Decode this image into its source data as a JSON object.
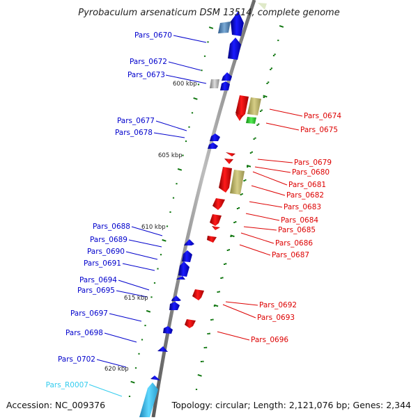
{
  "title": "Pyrobaculum arsenaticum DSM 13514, complete genome",
  "footer": {
    "accession": "Accession: NC_009376",
    "topology": "Topology: circular; Length: 2,121,076 bp; Genes: 2,344"
  },
  "colors": {
    "forward": "#0000cc",
    "reverse": "#dd0000",
    "rna": "#33bbdd",
    "tick": "#117711",
    "backbone": "#888888"
  },
  "scale_labels": [
    "600 kbp",
    "605 kbp",
    "610 kbp",
    "615 kbp",
    "620 kbp"
  ],
  "genes_left": [
    {
      "name": "Pars_0670",
      "color": "#0000cc"
    },
    {
      "name": "Pars_0672",
      "color": "#0000cc"
    },
    {
      "name": "Pars_0673",
      "color": "#0000cc"
    },
    {
      "name": "Pars_0677",
      "color": "#0000cc"
    },
    {
      "name": "Pars_0678",
      "color": "#0000cc"
    },
    {
      "name": "Pars_0688",
      "color": "#0000cc"
    },
    {
      "name": "Pars_0689",
      "color": "#0000cc"
    },
    {
      "name": "Pars_0690",
      "color": "#0000cc"
    },
    {
      "name": "Pars_0691",
      "color": "#0000cc"
    },
    {
      "name": "Pars_0694",
      "color": "#0000cc"
    },
    {
      "name": "Pars_0695",
      "color": "#0000cc"
    },
    {
      "name": "Pars_0697",
      "color": "#0000cc"
    },
    {
      "name": "Pars_0698",
      "color": "#0000cc"
    },
    {
      "name": "Pars_0702",
      "color": "#0000cc"
    },
    {
      "name": "Pars_R0007",
      "color": "#33ccee"
    }
  ],
  "genes_right": [
    {
      "name": "Pars_0674",
      "color": "#dd0000"
    },
    {
      "name": "Pars_0675",
      "color": "#dd0000"
    },
    {
      "name": "Pars_0679",
      "color": "#dd0000"
    },
    {
      "name": "Pars_0680",
      "color": "#dd0000"
    },
    {
      "name": "Pars_0681",
      "color": "#dd0000"
    },
    {
      "name": "Pars_0682",
      "color": "#dd0000"
    },
    {
      "name": "Pars_0683",
      "color": "#dd0000"
    },
    {
      "name": "Pars_0684",
      "color": "#dd0000"
    },
    {
      "name": "Pars_0685",
      "color": "#dd0000"
    },
    {
      "name": "Pars_0686",
      "color": "#dd0000"
    },
    {
      "name": "Pars_0687",
      "color": "#dd0000"
    },
    {
      "name": "Pars_0692",
      "color": "#dd0000"
    },
    {
      "name": "Pars_0693",
      "color": "#dd0000"
    },
    {
      "name": "Pars_0696",
      "color": "#dd0000"
    }
  ]
}
